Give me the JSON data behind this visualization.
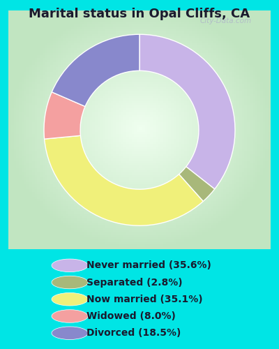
{
  "title": "Marital status in Opal Cliffs, CA",
  "bg_cyan": "#00e5e5",
  "chart_panel_color": "#d8eed8",
  "slices": [
    {
      "label": "Never married (35.6%)",
      "value": 35.6,
      "color": "#c8b4e8"
    },
    {
      "label": "Separated (2.8%)",
      "value": 2.8,
      "color": "#a8b87a"
    },
    {
      "label": "Now married (35.1%)",
      "value": 35.1,
      "color": "#f0f07a"
    },
    {
      "label": "Widowed (8.0%)",
      "value": 8.0,
      "color": "#f4a0a0"
    },
    {
      "label": "Divorced (18.5%)",
      "value": 18.5,
      "color": "#8888cc"
    }
  ],
  "legend_colors": [
    "#c8b4e8",
    "#a8b87a",
    "#f0f07a",
    "#f4a0a0",
    "#8888cc"
  ],
  "legend_labels": [
    "Never married (35.6%)",
    "Separated (2.8%)",
    "Now married (35.1%)",
    "Widowed (8.0%)",
    "Divorced (18.5%)"
  ],
  "watermark": "City-Data.com",
  "title_fontsize": 13,
  "legend_fontsize": 10
}
